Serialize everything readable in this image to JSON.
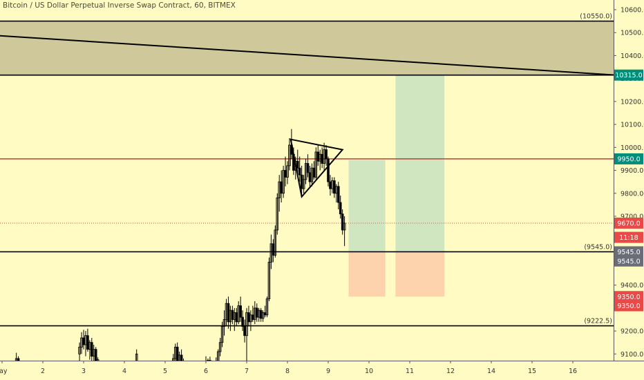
{
  "header": {
    "title": "Bitcoin / US Dollar Perpetual Inverse Swap Contract, 60, BITMEX"
  },
  "colors": {
    "background": "#fffbc3",
    "resistance_zone": "#cfc89a",
    "green_box": "#cfe6c1",
    "red_box": "#fcd3ad",
    "red_line": "#b0302b",
    "teal_badge": "#008e7a",
    "red_badge": "#e74a47",
    "grey_badge": "#6a6d78",
    "candle": "#000000"
  },
  "chart_data": {
    "type": "candlestick",
    "symbol": "Bitcoin / US Dollar Perpetual Inverse Swap Contract",
    "interval": "60",
    "exchange": "BITMEX",
    "ylim": [
      9030,
      10620
    ],
    "xlim": [
      0.9,
      16.05
    ],
    "y_ticks": [
      "10600.0",
      "10500.0",
      "10400.0",
      "10300.0",
      "10200.0",
      "10100.0",
      "10000.0",
      "9900.0",
      "9800.0",
      "9700.0",
      "9600.0",
      "9500.0",
      "9400.0",
      "9300.0",
      "9200.0",
      "9100.0"
    ],
    "x_ticks": [
      {
        "label": "ay",
        "x": 1
      },
      {
        "label": "2",
        "x": 2
      },
      {
        "label": "3",
        "x": 3
      },
      {
        "label": "4",
        "x": 4
      },
      {
        "label": "5",
        "x": 5
      },
      {
        "label": "6",
        "x": 6
      },
      {
        "label": "7",
        "x": 7
      },
      {
        "label": "8",
        "x": 8
      },
      {
        "label": "9",
        "x": 9
      },
      {
        "label": "10",
        "x": 10
      },
      {
        "label": "11",
        "x": 11
      },
      {
        "label": "12",
        "x": 12
      },
      {
        "label": "14",
        "x": 13
      },
      {
        "label": "15",
        "x": 14
      },
      {
        "label": "16",
        "x": 15
      }
    ],
    "resistance_zone": {
      "from": 10315,
      "to": 10550
    },
    "horizontal_lines": [
      {
        "price": 10550,
        "label": "(10550.0)",
        "style": "black"
      },
      {
        "price": 10315,
        "label": "10315.0",
        "style": "black",
        "badge": "teal"
      },
      {
        "price": 9950,
        "label": "9950.0",
        "style": "red",
        "badge": "teal"
      },
      {
        "price": 9545,
        "label": "(9545.0)",
        "style": "black"
      },
      {
        "price": 9222.5,
        "label": "(9222.5)",
        "style": "black"
      }
    ],
    "trend_line": {
      "from": {
        "x": 0.9,
        "price": 10487
      },
      "to": {
        "x": 16.05,
        "price": 10315
      }
    },
    "current_price": {
      "price": 9670,
      "label": "9670.0",
      "countdown": "11:18"
    },
    "price_badges": [
      {
        "label": "9545.0",
        "price": 9545,
        "color": "grey"
      },
      {
        "label": "9545.0",
        "price": 9505,
        "color": "grey"
      },
      {
        "label": "9350.0",
        "price": 9350,
        "color": "red"
      },
      {
        "label": "9350.0",
        "price": 9310,
        "color": "red"
      }
    ],
    "positions": [
      {
        "x_from": 9.5,
        "x_to": 10.4,
        "entry": 9545,
        "target": 9945,
        "stop": 9350
      },
      {
        "x_from": 10.65,
        "x_to": 11.85,
        "entry": 9545,
        "target": 10315,
        "stop": 9350
      }
    ],
    "triangle": [
      {
        "x": 8.08,
        "price": 10035
      },
      {
        "x": 9.35,
        "price": 9990
      },
      {
        "x": 8.35,
        "price": 9785
      }
    ],
    "candles": [
      {
        "x": 1.35,
        "o": 9050,
        "h": 9105,
        "l": 9030,
        "c": 9080
      },
      {
        "x": 1.4,
        "o": 9080,
        "h": 9090,
        "l": 9035,
        "c": 9045
      },
      {
        "x": 2.9,
        "o": 9100,
        "h": 9150,
        "l": 9055,
        "c": 9130
      },
      {
        "x": 2.95,
        "o": 9130,
        "h": 9195,
        "l": 9100,
        "c": 9170
      },
      {
        "x": 3.0,
        "o": 9170,
        "h": 9205,
        "l": 9120,
        "c": 9140
      },
      {
        "x": 3.05,
        "o": 9140,
        "h": 9200,
        "l": 9090,
        "c": 9180
      },
      {
        "x": 3.1,
        "o": 9180,
        "h": 9210,
        "l": 9110,
        "c": 9120
      },
      {
        "x": 3.15,
        "o": 9120,
        "h": 9160,
        "l": 9075,
        "c": 9150
      },
      {
        "x": 3.2,
        "o": 9150,
        "h": 9170,
        "l": 9070,
        "c": 9090
      },
      {
        "x": 3.25,
        "o": 9090,
        "h": 9140,
        "l": 9040,
        "c": 9120
      },
      {
        "x": 3.3,
        "o": 9120,
        "h": 9130,
        "l": 9040,
        "c": 9060
      },
      {
        "x": 3.35,
        "o": 9060,
        "h": 9085,
        "l": 9030,
        "c": 9075
      },
      {
        "x": 4.3,
        "o": 9060,
        "h": 9120,
        "l": 9040,
        "c": 9100
      },
      {
        "x": 5.2,
        "o": 9050,
        "h": 9100,
        "l": 9035,
        "c": 9080
      },
      {
        "x": 5.25,
        "o": 9080,
        "h": 9145,
        "l": 9060,
        "c": 9130
      },
      {
        "x": 5.3,
        "o": 9130,
        "h": 9150,
        "l": 9050,
        "c": 9070
      },
      {
        "x": 5.35,
        "o": 9070,
        "h": 9110,
        "l": 9035,
        "c": 9095
      },
      {
        "x": 5.4,
        "o": 9095,
        "h": 9120,
        "l": 9040,
        "c": 9055
      },
      {
        "x": 5.45,
        "o": 9055,
        "h": 9080,
        "l": 9030,
        "c": 9050
      },
      {
        "x": 5.95,
        "o": 9040,
        "h": 9070,
        "l": 9030,
        "c": 9060
      },
      {
        "x": 6.0,
        "o": 9060,
        "h": 9090,
        "l": 9035,
        "c": 9050
      },
      {
        "x": 6.05,
        "o": 9050,
        "h": 9080,
        "l": 9032,
        "c": 9072
      },
      {
        "x": 6.1,
        "o": 9072,
        "h": 9088,
        "l": 9036,
        "c": 9045
      },
      {
        "x": 6.2,
        "o": 9045,
        "h": 9070,
        "l": 9030,
        "c": 9065
      },
      {
        "x": 6.25,
        "o": 9065,
        "h": 9085,
        "l": 9040,
        "c": 9055
      },
      {
        "x": 6.3,
        "o": 9055,
        "h": 9120,
        "l": 9040,
        "c": 9110
      },
      {
        "x": 6.35,
        "o": 9110,
        "h": 9170,
        "l": 9090,
        "c": 9150
      },
      {
        "x": 6.4,
        "o": 9150,
        "h": 9240,
        "l": 9130,
        "c": 9220
      },
      {
        "x": 6.45,
        "o": 9220,
        "h": 9290,
        "l": 9180,
        "c": 9250
      },
      {
        "x": 6.5,
        "o": 9250,
        "h": 9340,
        "l": 9220,
        "c": 9320
      },
      {
        "x": 6.55,
        "o": 9320,
        "h": 9350,
        "l": 9210,
        "c": 9240
      },
      {
        "x": 6.6,
        "o": 9240,
        "h": 9310,
        "l": 9200,
        "c": 9290
      },
      {
        "x": 6.65,
        "o": 9290,
        "h": 9310,
        "l": 9230,
        "c": 9250
      },
      {
        "x": 6.7,
        "o": 9250,
        "h": 9300,
        "l": 9200,
        "c": 9280
      },
      {
        "x": 6.75,
        "o": 9280,
        "h": 9300,
        "l": 9220,
        "c": 9240
      },
      {
        "x": 6.8,
        "o": 9240,
        "h": 9330,
        "l": 9230,
        "c": 9310
      },
      {
        "x": 6.85,
        "o": 9310,
        "h": 9350,
        "l": 9240,
        "c": 9260
      },
      {
        "x": 6.9,
        "o": 9260,
        "h": 9290,
        "l": 9200,
        "c": 9220
      },
      {
        "x": 6.95,
        "o": 9220,
        "h": 9250,
        "l": 9150,
        "c": 9180
      },
      {
        "x": 7.0,
        "o": 9180,
        "h": 9300,
        "l": 9060,
        "c": 9280
      },
      {
        "x": 7.05,
        "o": 9280,
        "h": 9310,
        "l": 9220,
        "c": 9240
      },
      {
        "x": 7.1,
        "o": 9240,
        "h": 9290,
        "l": 9200,
        "c": 9270
      },
      {
        "x": 7.15,
        "o": 9270,
        "h": 9310,
        "l": 9240,
        "c": 9250
      },
      {
        "x": 7.2,
        "o": 9250,
        "h": 9330,
        "l": 9230,
        "c": 9300
      },
      {
        "x": 7.25,
        "o": 9300,
        "h": 9320,
        "l": 9240,
        "c": 9260
      },
      {
        "x": 7.3,
        "o": 9260,
        "h": 9300,
        "l": 9240,
        "c": 9290
      },
      {
        "x": 7.35,
        "o": 9290,
        "h": 9300,
        "l": 9240,
        "c": 9255
      },
      {
        "x": 7.4,
        "o": 9255,
        "h": 9290,
        "l": 9240,
        "c": 9280
      },
      {
        "x": 7.45,
        "o": 9280,
        "h": 9310,
        "l": 9260,
        "c": 9270
      },
      {
        "x": 7.5,
        "o": 9270,
        "h": 9350,
        "l": 9260,
        "c": 9340
      },
      {
        "x": 7.55,
        "o": 9340,
        "h": 9520,
        "l": 9330,
        "c": 9500
      },
      {
        "x": 7.6,
        "o": 9500,
        "h": 9620,
        "l": 9470,
        "c": 9580
      },
      {
        "x": 7.65,
        "o": 9580,
        "h": 9600,
        "l": 9500,
        "c": 9530
      },
      {
        "x": 7.7,
        "o": 9530,
        "h": 9660,
        "l": 9520,
        "c": 9640
      },
      {
        "x": 7.75,
        "o": 9640,
        "h": 9800,
        "l": 9620,
        "c": 9780
      },
      {
        "x": 7.8,
        "o": 9780,
        "h": 9880,
        "l": 9720,
        "c": 9850
      },
      {
        "x": 7.85,
        "o": 9850,
        "h": 9900,
        "l": 9760,
        "c": 9800
      },
      {
        "x": 7.9,
        "o": 9800,
        "h": 9920,
        "l": 9780,
        "c": 9900
      },
      {
        "x": 7.95,
        "o": 9900,
        "h": 9960,
        "l": 9830,
        "c": 9870
      },
      {
        "x": 8.0,
        "o": 9870,
        "h": 9940,
        "l": 9840,
        "c": 9920
      },
      {
        "x": 8.05,
        "o": 9920,
        "h": 10040,
        "l": 9900,
        "c": 10010
      },
      {
        "x": 8.1,
        "o": 10010,
        "h": 10080,
        "l": 9950,
        "c": 9970
      },
      {
        "x": 8.15,
        "o": 9970,
        "h": 10000,
        "l": 9880,
        "c": 9900
      },
      {
        "x": 8.2,
        "o": 9900,
        "h": 9960,
        "l": 9860,
        "c": 9940
      },
      {
        "x": 8.25,
        "o": 9940,
        "h": 9990,
        "l": 9880,
        "c": 9910
      },
      {
        "x": 8.3,
        "o": 9910,
        "h": 9960,
        "l": 9850,
        "c": 9880
      },
      {
        "x": 8.35,
        "o": 9880,
        "h": 9920,
        "l": 9790,
        "c": 9820
      },
      {
        "x": 8.4,
        "o": 9820,
        "h": 9880,
        "l": 9800,
        "c": 9860
      },
      {
        "x": 8.45,
        "o": 9860,
        "h": 9950,
        "l": 9840,
        "c": 9930
      },
      {
        "x": 8.5,
        "o": 9930,
        "h": 9970,
        "l": 9870,
        "c": 9890
      },
      {
        "x": 8.55,
        "o": 9890,
        "h": 9920,
        "l": 9830,
        "c": 9850
      },
      {
        "x": 8.6,
        "o": 9850,
        "h": 9930,
        "l": 9830,
        "c": 9910
      },
      {
        "x": 8.65,
        "o": 9910,
        "h": 9940,
        "l": 9860,
        "c": 9870
      },
      {
        "x": 8.7,
        "o": 9870,
        "h": 10000,
        "l": 9860,
        "c": 9980
      },
      {
        "x": 8.75,
        "o": 9980,
        "h": 10010,
        "l": 9920,
        "c": 9940
      },
      {
        "x": 8.8,
        "o": 9940,
        "h": 9990,
        "l": 9900,
        "c": 9970
      },
      {
        "x": 8.85,
        "o": 9970,
        "h": 10000,
        "l": 9910,
        "c": 9930
      },
      {
        "x": 8.9,
        "o": 9930,
        "h": 10020,
        "l": 9900,
        "c": 9990
      },
      {
        "x": 8.95,
        "o": 9990,
        "h": 10010,
        "l": 9920,
        "c": 9950
      },
      {
        "x": 9.0,
        "o": 9950,
        "h": 9960,
        "l": 9830,
        "c": 9850
      },
      {
        "x": 9.05,
        "o": 9850,
        "h": 9880,
        "l": 9790,
        "c": 9820
      },
      {
        "x": 9.1,
        "o": 9820,
        "h": 9870,
        "l": 9800,
        "c": 9855
      },
      {
        "x": 9.15,
        "o": 9855,
        "h": 9870,
        "l": 9780,
        "c": 9800
      },
      {
        "x": 9.2,
        "o": 9800,
        "h": 9840,
        "l": 9760,
        "c": 9830
      },
      {
        "x": 9.25,
        "o": 9830,
        "h": 9850,
        "l": 9730,
        "c": 9760
      },
      {
        "x": 9.3,
        "o": 9760,
        "h": 9790,
        "l": 9690,
        "c": 9710
      },
      {
        "x": 9.35,
        "o": 9710,
        "h": 9730,
        "l": 9620,
        "c": 9640
      },
      {
        "x": 9.4,
        "o": 9640,
        "h": 9700,
        "l": 9570,
        "c": 9670
      }
    ]
  }
}
